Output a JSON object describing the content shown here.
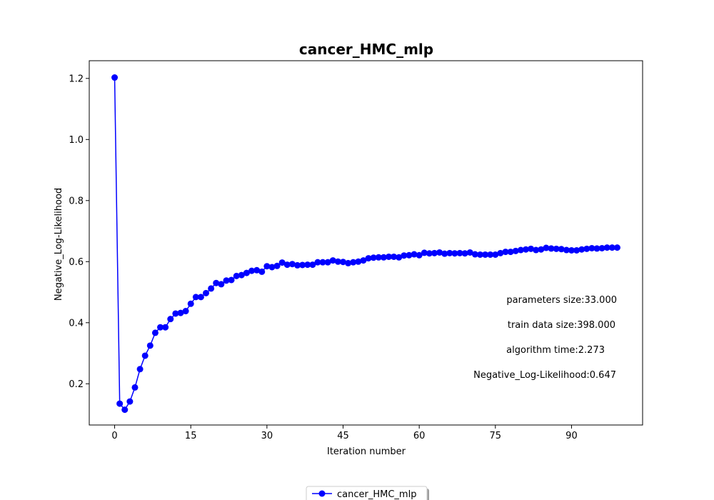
{
  "chart_data": {
    "type": "line",
    "title": "cancer_HMC_mlp",
    "xlabel": "Iteration number",
    "ylabel": "Negative_Log-Likelihood",
    "xlim": [
      -5,
      104
    ],
    "ylim": [
      0.065,
      1.258
    ],
    "xticks": [
      0,
      15,
      30,
      45,
      60,
      75,
      90
    ],
    "yticks": [
      0.2,
      0.4,
      0.6,
      0.8,
      1.0,
      1.2
    ],
    "grid": false,
    "legend_position": "bottom-center",
    "series": [
      {
        "name": "cancer_HMC_mlp",
        "color": "#0000ff",
        "marker": "circle",
        "x": [
          0,
          1,
          2,
          3,
          4,
          5,
          6,
          7,
          8,
          9,
          10,
          11,
          12,
          13,
          14,
          15,
          16,
          17,
          18,
          19,
          20,
          21,
          22,
          23,
          24,
          25,
          26,
          27,
          28,
          29,
          30,
          31,
          32,
          33,
          34,
          35,
          36,
          37,
          38,
          39,
          40,
          41,
          42,
          43,
          44,
          45,
          46,
          47,
          48,
          49,
          50,
          51,
          52,
          53,
          54,
          55,
          56,
          57,
          58,
          59,
          60,
          61,
          62,
          63,
          64,
          65,
          66,
          67,
          68,
          69,
          70,
          71,
          72,
          73,
          74,
          75,
          76,
          77,
          78,
          79,
          80,
          81,
          82,
          83,
          84,
          85,
          86,
          87,
          88,
          89,
          90,
          91,
          92,
          93,
          94,
          95,
          96,
          97,
          98,
          99
        ],
        "y": [
          1.203,
          0.135,
          0.115,
          0.142,
          0.188,
          0.248,
          0.292,
          0.325,
          0.367,
          0.385,
          0.385,
          0.412,
          0.43,
          0.432,
          0.438,
          0.462,
          0.484,
          0.484,
          0.497,
          0.512,
          0.53,
          0.526,
          0.538,
          0.54,
          0.553,
          0.556,
          0.563,
          0.57,
          0.572,
          0.567,
          0.585,
          0.582,
          0.586,
          0.597,
          0.59,
          0.592,
          0.588,
          0.589,
          0.59,
          0.59,
          0.598,
          0.598,
          0.598,
          0.604,
          0.6,
          0.599,
          0.595,
          0.598,
          0.6,
          0.604,
          0.611,
          0.613,
          0.614,
          0.614,
          0.616,
          0.616,
          0.614,
          0.62,
          0.621,
          0.624,
          0.621,
          0.629,
          0.627,
          0.628,
          0.63,
          0.626,
          0.628,
          0.627,
          0.628,
          0.627,
          0.63,
          0.624,
          0.623,
          0.623,
          0.623,
          0.623,
          0.628,
          0.632,
          0.632,
          0.635,
          0.638,
          0.64,
          0.642,
          0.638,
          0.64,
          0.645,
          0.643,
          0.642,
          0.641,
          0.638,
          0.637,
          0.637,
          0.64,
          0.642,
          0.644,
          0.643,
          0.644,
          0.646,
          0.646,
          0.646
        ]
      }
    ],
    "annotations": [
      "parameters size:33.000",
      "train data size:398.000",
      "algorithm time:2.273",
      "Negative_Log-Likelihood:0.647"
    ]
  }
}
